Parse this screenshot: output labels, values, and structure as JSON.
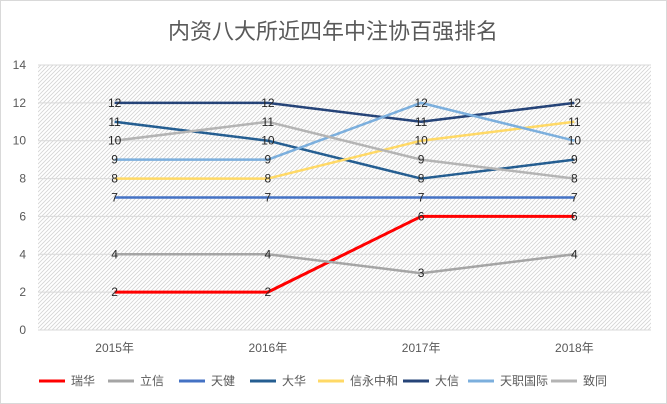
{
  "chart_data": {
    "type": "line",
    "title": "内资八大所近四年中注协百强排名",
    "categories": [
      "2015年",
      "2016年",
      "2017年",
      "2018年"
    ],
    "ylim": [
      0,
      14
    ],
    "yticks": [
      0,
      2,
      4,
      6,
      8,
      10,
      12,
      14
    ],
    "xlabel": "",
    "ylabel": "",
    "grid": true,
    "legend_position": "bottom",
    "series": [
      {
        "name": "瑞华",
        "values": [
          2,
          2,
          6,
          6
        ],
        "color": "#ff0000"
      },
      {
        "name": "立信",
        "values": [
          4,
          4,
          3,
          4
        ],
        "color": "#a5a5a5"
      },
      {
        "name": "天健",
        "values": [
          7,
          7,
          7,
          7
        ],
        "color": "#4472c4"
      },
      {
        "name": "大华",
        "values": [
          11,
          10,
          8,
          9
        ],
        "color": "#255e91"
      },
      {
        "name": "信永中和",
        "values": [
          8,
          8,
          10,
          11
        ],
        "color": "#ffd966"
      },
      {
        "name": "大信",
        "values": [
          12,
          12,
          11,
          12
        ],
        "color": "#264478"
      },
      {
        "name": "天职国际",
        "values": [
          9,
          9,
          12,
          10
        ],
        "color": "#7cafdd"
      },
      {
        "name": "致同",
        "values": [
          10,
          11,
          9,
          8
        ],
        "color": "#b4b4b4"
      }
    ]
  }
}
